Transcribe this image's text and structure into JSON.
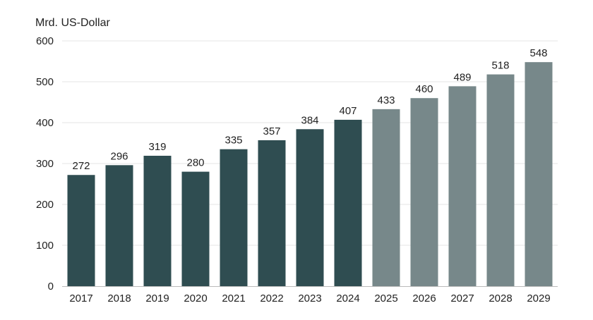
{
  "chart_data": {
    "type": "bar",
    "title": "",
    "xlabel": "",
    "ylabel": "Mrd. US-Dollar",
    "categories": [
      "2017",
      "2018",
      "2019",
      "2020",
      "2021",
      "2022",
      "2023",
      "2024",
      "2025",
      "2026",
      "2027",
      "2028",
      "2029"
    ],
    "values": [
      272,
      296,
      319,
      280,
      335,
      357,
      384,
      407,
      433,
      460,
      489,
      518,
      548
    ],
    "data_labels": [
      "272",
      "296",
      "319",
      "280",
      "335",
      "357",
      "384",
      "407",
      "433",
      "460",
      "489",
      "518",
      "548"
    ],
    "ylim": [
      0,
      600
    ],
    "yticks": [
      0,
      100,
      200,
      300,
      400,
      500,
      600
    ],
    "ytick_labels": [
      "0",
      "100",
      "200",
      "300",
      "400",
      "500",
      "600"
    ],
    "grid": true,
    "legend": "none",
    "colors": {
      "actual": "#2f4d51",
      "forecast": "#77888a"
    },
    "forecast_from": "2025"
  }
}
